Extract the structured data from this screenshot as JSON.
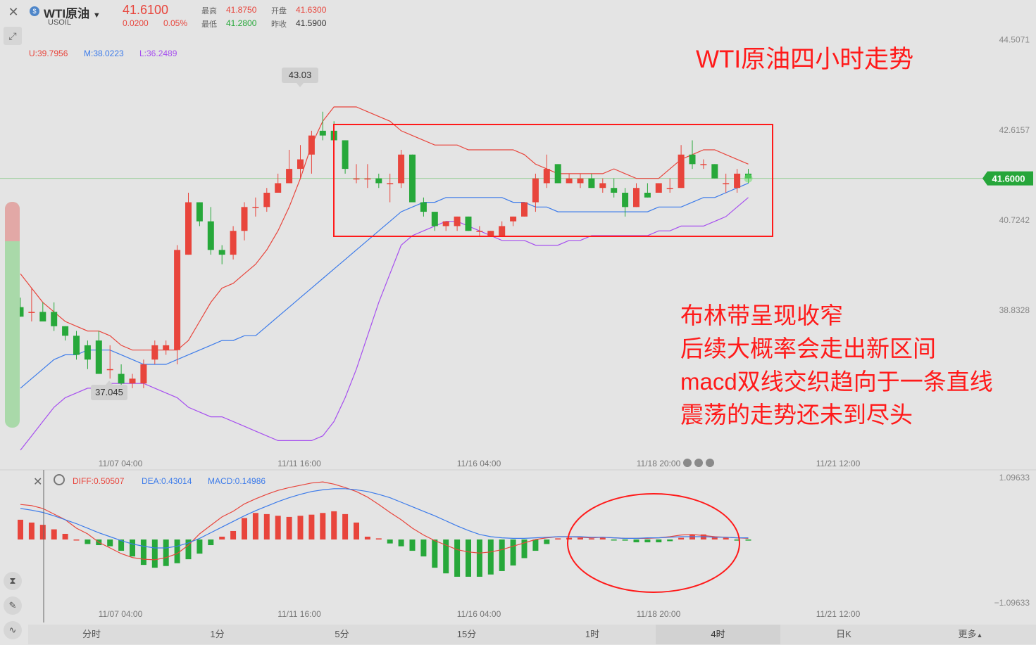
{
  "symbol": {
    "name": "WTI原油",
    "code": "USOIL",
    "price": "41.6100",
    "change": "0.0200",
    "change_pct": "0.05%"
  },
  "stats": {
    "high_label": "最高",
    "high": "41.8750",
    "open_label": "开盘",
    "open": "41.6300",
    "low_label": "最低",
    "low": "41.2800",
    "prev_label": "昨收",
    "prev": "41.5900"
  },
  "boll": {
    "u": "U:39.7956",
    "m": "M:38.0223",
    "l": "L:36.2489"
  },
  "macd_legend": {
    "diff": "DIFF:0.50507",
    "dea": "DEA:0.43014",
    "macd": "MACD:0.14986"
  },
  "chart_data": {
    "type": "candlestick",
    "title": "WTI原油四小时走势",
    "y_ticks": [
      "44.5071",
      "42.6157",
      "40.7242",
      "38.8328"
    ],
    "y_range": [
      35.9,
      44.9
    ],
    "current_price": "41.6000",
    "x_ticks": [
      "11/07 04:00",
      "11/11 16:00",
      "11/16 04:00",
      "11/18 20:00",
      "11/21 12:00"
    ],
    "callouts": {
      "max": "43.03",
      "min": "37.045"
    },
    "candles": [
      {
        "o": 38.9,
        "h": 39.1,
        "l": 38.7,
        "c": 38.7
      },
      {
        "o": 38.8,
        "h": 39.3,
        "l": 38.6,
        "c": 38.8
      },
      {
        "o": 38.8,
        "h": 39.0,
        "l": 38.6,
        "c": 38.6
      },
      {
        "o": 38.8,
        "h": 39.0,
        "l": 38.4,
        "c": 38.5
      },
      {
        "o": 38.5,
        "h": 38.5,
        "l": 38.2,
        "c": 38.3
      },
      {
        "o": 38.3,
        "h": 38.4,
        "l": 37.8,
        "c": 37.9
      },
      {
        "o": 38.1,
        "h": 38.2,
        "l": 37.6,
        "c": 37.8
      },
      {
        "o": 38.2,
        "h": 38.4,
        "l": 37.5,
        "c": 37.5
      },
      {
        "o": 37.6,
        "h": 38.1,
        "l": 37.4,
        "c": 37.6
      },
      {
        "o": 37.5,
        "h": 37.7,
        "l": 37.2,
        "c": 37.3
      },
      {
        "o": 37.3,
        "h": 37.5,
        "l": 37.2,
        "c": 37.4
      },
      {
        "o": 37.3,
        "h": 37.8,
        "l": 37.2,
        "c": 37.7
      },
      {
        "o": 37.8,
        "h": 38.2,
        "l": 37.7,
        "c": 38.1
      },
      {
        "o": 38.0,
        "h": 38.2,
        "l": 37.9,
        "c": 38.1
      },
      {
        "o": 38.0,
        "h": 40.2,
        "l": 37.7,
        "c": 40.1
      },
      {
        "o": 40.0,
        "h": 41.3,
        "l": 40.0,
        "c": 41.1
      },
      {
        "o": 41.1,
        "h": 41.1,
        "l": 40.6,
        "c": 40.7
      },
      {
        "o": 40.7,
        "h": 41.0,
        "l": 40.0,
        "c": 40.1
      },
      {
        "o": 40.1,
        "h": 40.2,
        "l": 39.8,
        "c": 40.0
      },
      {
        "o": 40.0,
        "h": 40.6,
        "l": 39.9,
        "c": 40.5
      },
      {
        "o": 40.5,
        "h": 41.1,
        "l": 40.3,
        "c": 41.0
      },
      {
        "o": 41.0,
        "h": 41.2,
        "l": 40.8,
        "c": 41.0
      },
      {
        "o": 41.0,
        "h": 41.4,
        "l": 40.9,
        "c": 41.3
      },
      {
        "o": 41.3,
        "h": 41.7,
        "l": 41.3,
        "c": 41.5
      },
      {
        "o": 41.5,
        "h": 42.2,
        "l": 41.5,
        "c": 41.8
      },
      {
        "o": 41.8,
        "h": 42.3,
        "l": 41.6,
        "c": 42.0
      },
      {
        "o": 42.1,
        "h": 42.6,
        "l": 41.7,
        "c": 42.5
      },
      {
        "o": 42.6,
        "h": 43.0,
        "l": 42.4,
        "c": 42.5
      },
      {
        "o": 42.6,
        "h": 42.8,
        "l": 42.3,
        "c": 42.4
      },
      {
        "o": 42.4,
        "h": 42.4,
        "l": 41.7,
        "c": 41.8
      },
      {
        "o": 41.6,
        "h": 41.9,
        "l": 41.5,
        "c": 41.6
      },
      {
        "o": 41.6,
        "h": 41.9,
        "l": 41.4,
        "c": 41.6
      },
      {
        "o": 41.6,
        "h": 41.7,
        "l": 41.4,
        "c": 41.5
      },
      {
        "o": 41.5,
        "h": 41.7,
        "l": 41.1,
        "c": 41.5
      },
      {
        "o": 41.5,
        "h": 42.2,
        "l": 41.4,
        "c": 42.1
      },
      {
        "o": 42.1,
        "h": 42.1,
        "l": 41.1,
        "c": 41.1
      },
      {
        "o": 41.1,
        "h": 41.2,
        "l": 40.8,
        "c": 40.9
      },
      {
        "o": 40.9,
        "h": 40.9,
        "l": 40.5,
        "c": 40.6
      },
      {
        "o": 40.6,
        "h": 40.7,
        "l": 40.5,
        "c": 40.7
      },
      {
        "o": 40.6,
        "h": 40.8,
        "l": 40.5,
        "c": 40.8
      },
      {
        "o": 40.8,
        "h": 40.8,
        "l": 40.5,
        "c": 40.5
      },
      {
        "o": 40.5,
        "h": 40.6,
        "l": 40.4,
        "c": 40.5
      },
      {
        "o": 40.4,
        "h": 40.5,
        "l": 40.4,
        "c": 40.5
      },
      {
        "o": 40.4,
        "h": 40.7,
        "l": 40.4,
        "c": 40.6
      },
      {
        "o": 40.7,
        "h": 40.8,
        "l": 40.6,
        "c": 40.8
      },
      {
        "o": 40.8,
        "h": 41.1,
        "l": 40.8,
        "c": 41.1
      },
      {
        "o": 41.1,
        "h": 41.7,
        "l": 40.9,
        "c": 41.6
      },
      {
        "o": 41.5,
        "h": 42.1,
        "l": 41.4,
        "c": 41.8
      },
      {
        "o": 41.9,
        "h": 41.9,
        "l": 41.5,
        "c": 41.5
      },
      {
        "o": 41.5,
        "h": 41.7,
        "l": 41.5,
        "c": 41.6
      },
      {
        "o": 41.5,
        "h": 41.7,
        "l": 41.4,
        "c": 41.6
      },
      {
        "o": 41.6,
        "h": 41.7,
        "l": 41.4,
        "c": 41.4
      },
      {
        "o": 41.4,
        "h": 41.6,
        "l": 41.3,
        "c": 41.5
      },
      {
        "o": 41.4,
        "h": 41.6,
        "l": 41.2,
        "c": 41.3
      },
      {
        "o": 41.3,
        "h": 41.4,
        "l": 40.8,
        "c": 41.0
      },
      {
        "o": 41.0,
        "h": 41.5,
        "l": 41.0,
        "c": 41.4
      },
      {
        "o": 41.3,
        "h": 41.5,
        "l": 41.2,
        "c": 41.2
      },
      {
        "o": 41.3,
        "h": 41.5,
        "l": 41.3,
        "c": 41.5
      },
      {
        "o": 41.4,
        "h": 41.6,
        "l": 41.3,
        "c": 41.4
      },
      {
        "o": 41.4,
        "h": 42.3,
        "l": 41.4,
        "c": 42.1
      },
      {
        "o": 42.1,
        "h": 42.4,
        "l": 41.8,
        "c": 41.9
      },
      {
        "o": 41.9,
        "h": 42.0,
        "l": 41.8,
        "c": 41.9
      },
      {
        "o": 41.9,
        "h": 41.9,
        "l": 41.6,
        "c": 41.6
      },
      {
        "o": 41.5,
        "h": 41.7,
        "l": 41.3,
        "c": 41.5
      },
      {
        "o": 41.4,
        "h": 41.8,
        "l": 41.3,
        "c": 41.7
      },
      {
        "o": 41.7,
        "h": 41.8,
        "l": 41.5,
        "c": 41.6
      }
    ],
    "boll_upper": [
      39.6,
      39.3,
      39.0,
      38.8,
      38.6,
      38.5,
      38.4,
      38.4,
      38.3,
      38.1,
      38.0,
      38.0,
      38.0,
      38.0,
      38.0,
      38.2,
      38.6,
      39.0,
      39.3,
      39.4,
      39.6,
      39.8,
      40.1,
      40.5,
      41.0,
      41.6,
      42.3,
      42.8,
      43.1,
      43.1,
      43.1,
      43.0,
      42.9,
      42.8,
      42.6,
      42.5,
      42.4,
      42.3,
      42.3,
      42.3,
      42.2,
      42.2,
      42.2,
      42.2,
      42.2,
      42.1,
      41.9,
      41.8,
      41.7,
      41.7,
      41.7,
      41.7,
      41.7,
      41.8,
      41.7,
      41.6,
      41.6,
      41.6,
      41.8,
      42.0,
      42.1,
      42.2,
      42.2,
      42.1,
      42.0,
      41.9
    ],
    "boll_mid": [
      37.2,
      37.4,
      37.6,
      37.8,
      37.9,
      37.9,
      38.0,
      38.0,
      38.0,
      37.9,
      37.8,
      37.7,
      37.7,
      37.7,
      37.8,
      37.9,
      38.0,
      38.1,
      38.2,
      38.2,
      38.3,
      38.3,
      38.5,
      38.7,
      38.9,
      39.1,
      39.3,
      39.5,
      39.7,
      39.9,
      40.1,
      40.3,
      40.5,
      40.7,
      40.9,
      41.0,
      41.1,
      41.1,
      41.2,
      41.2,
      41.2,
      41.2,
      41.2,
      41.2,
      41.1,
      41.1,
      41.0,
      41.0,
      40.9,
      40.9,
      40.9,
      40.9,
      40.9,
      40.9,
      40.9,
      40.9,
      40.9,
      41.0,
      41.0,
      41.0,
      41.1,
      41.2,
      41.2,
      41.3,
      41.4,
      41.5
    ],
    "boll_lower": [
      35.9,
      36.2,
      36.5,
      36.8,
      37.0,
      37.1,
      37.2,
      37.2,
      37.3,
      37.3,
      37.3,
      37.3,
      37.2,
      37.1,
      37.0,
      36.8,
      36.7,
      36.6,
      36.6,
      36.5,
      36.4,
      36.3,
      36.2,
      36.1,
      36.1,
      36.1,
      36.1,
      36.2,
      36.5,
      37.0,
      37.6,
      38.3,
      39.0,
      39.6,
      40.2,
      40.4,
      40.5,
      40.6,
      40.7,
      40.7,
      40.6,
      40.5,
      40.4,
      40.3,
      40.3,
      40.3,
      40.2,
      40.2,
      40.2,
      40.3,
      40.3,
      40.4,
      40.4,
      40.4,
      40.4,
      40.4,
      40.4,
      40.5,
      40.5,
      40.6,
      40.6,
      40.6,
      40.7,
      40.8,
      41.0,
      41.2
    ],
    "macd": {
      "y_ticks": [
        "1.09633",
        "−1.09633"
      ],
      "y_range": [
        -1.09633,
        1.09633
      ],
      "hist": [
        0.35,
        0.3,
        0.26,
        0.18,
        0.1,
        0.0,
        -0.08,
        -0.1,
        -0.12,
        -0.2,
        -0.3,
        -0.45,
        -0.5,
        -0.47,
        -0.42,
        -0.35,
        -0.25,
        -0.1,
        0.05,
        0.15,
        0.38,
        0.47,
        0.45,
        0.42,
        0.4,
        0.42,
        0.44,
        0.47,
        0.5,
        0.45,
        0.3,
        0.05,
        0.02,
        -0.07,
        -0.12,
        -0.2,
        -0.3,
        -0.5,
        -0.6,
        -0.66,
        -0.66,
        -0.66,
        -0.62,
        -0.56,
        -0.46,
        -0.33,
        -0.2,
        -0.08,
        0.02,
        0.03,
        0.03,
        0.02,
        0.04,
        -0.01,
        -0.02,
        -0.05,
        -0.05,
        -0.05,
        -0.03,
        0.03,
        0.08,
        0.09,
        0.05,
        0.03,
        -0.02,
        -0.02
      ],
      "diff": [
        0.62,
        0.6,
        0.55,
        0.45,
        0.35,
        0.2,
        0.1,
        -0.05,
        -0.15,
        -0.25,
        -0.32,
        -0.35,
        -0.36,
        -0.32,
        -0.25,
        -0.1,
        0.1,
        0.25,
        0.4,
        0.5,
        0.63,
        0.72,
        0.8,
        0.87,
        0.92,
        0.96,
        1.0,
        1.02,
        0.98,
        0.92,
        0.85,
        0.75,
        0.62,
        0.48,
        0.35,
        0.2,
        0.08,
        -0.02,
        -0.1,
        -0.18,
        -0.22,
        -0.24,
        -0.22,
        -0.18,
        -0.12,
        -0.06,
        0.0,
        0.03,
        0.05,
        0.05,
        0.04,
        0.03,
        0.04,
        0.03,
        0.02,
        0.02,
        0.02,
        0.03,
        0.05,
        0.08,
        0.09,
        0.07,
        0.05,
        0.04,
        0.03,
        0.02
      ],
      "dea": [
        0.55,
        0.52,
        0.48,
        0.42,
        0.35,
        0.28,
        0.2,
        0.12,
        0.05,
        -0.02,
        -0.08,
        -0.12,
        -0.15,
        -0.15,
        -0.12,
        -0.06,
        0.02,
        0.12,
        0.22,
        0.32,
        0.42,
        0.51,
        0.59,
        0.67,
        0.74,
        0.8,
        0.85,
        0.88,
        0.9,
        0.9,
        0.88,
        0.85,
        0.8,
        0.74,
        0.66,
        0.58,
        0.5,
        0.42,
        0.33,
        0.24,
        0.16,
        0.09,
        0.05,
        0.03,
        0.02,
        0.02,
        0.03,
        0.04,
        0.05,
        0.05,
        0.05,
        0.04,
        0.04,
        0.03,
        0.02,
        0.02,
        0.03,
        0.03,
        0.04,
        0.05,
        0.05,
        0.05,
        0.04,
        0.04,
        0.03,
        0.03
      ]
    }
  },
  "annotations": {
    "title": "WTI原油四小时走势",
    "lines": [
      "布林带呈现收窄",
      "后续大概率会走出新区间",
      "macd双线交织趋向于一条直线",
      "震荡的走势还未到尽头"
    ]
  },
  "timeframes": [
    "分时",
    "1分",
    "5分",
    "15分",
    "1时",
    "4时",
    "日K",
    "更多"
  ],
  "active_timeframe": "4时",
  "colors": {
    "up": "#e8453c",
    "down": "#27a83a",
    "diff": "#e8453c",
    "dea": "#3c7bea",
    "boll_mid": "#3c7bea",
    "boll_lower": "#a64fef",
    "annot": "#ff1a1a",
    "grid": "#cfcfcf",
    "price_label": "#26a63a"
  }
}
